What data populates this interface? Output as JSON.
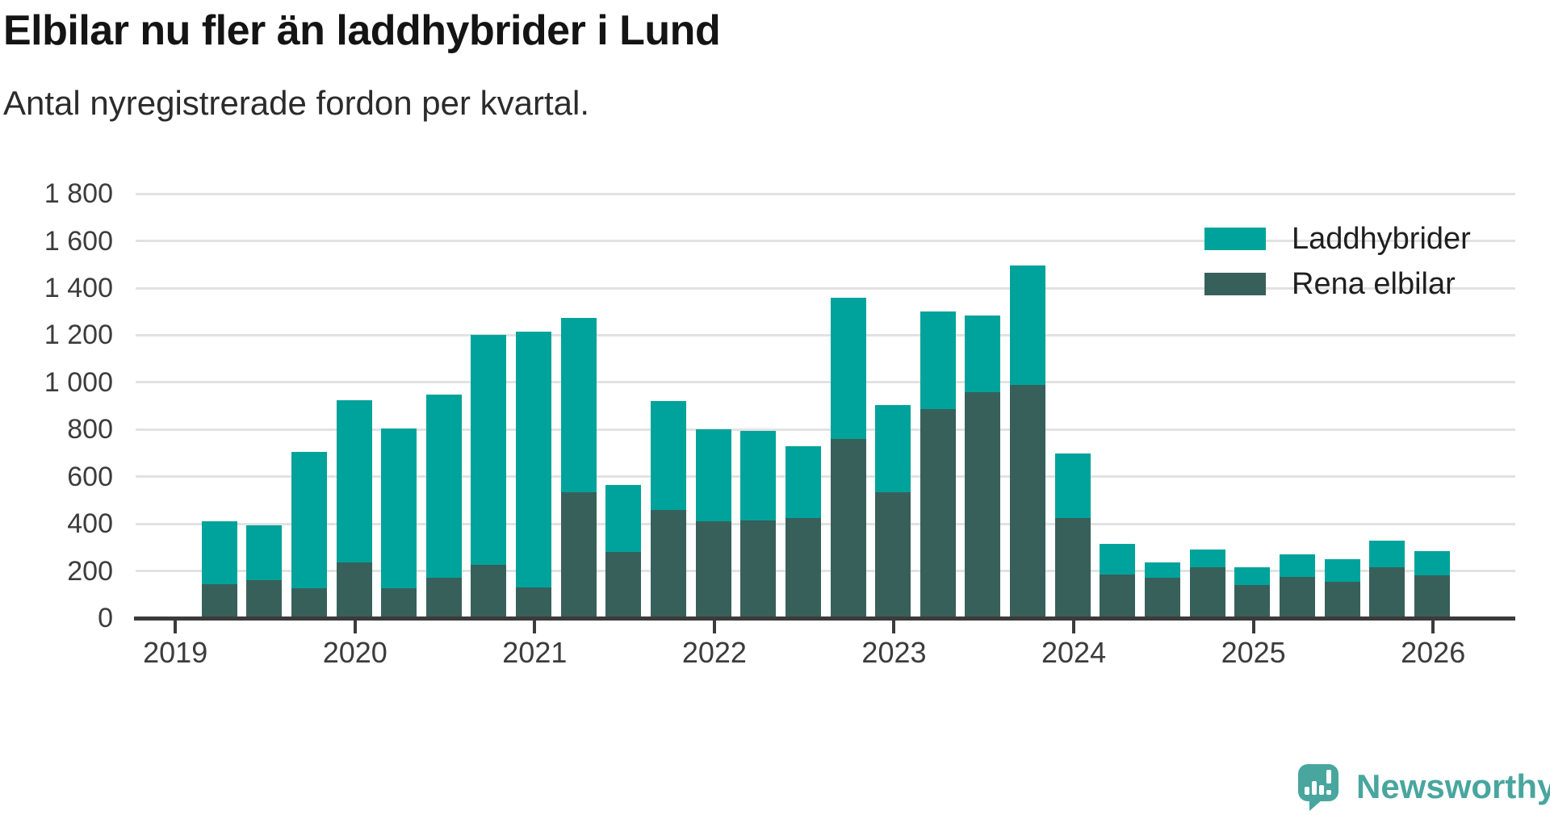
{
  "title": "Elbilar nu fler än laddhybrider i Lund",
  "subtitle": "Antal nyregistrerade fordon per kvartal.",
  "legend": {
    "items": [
      {
        "label": "Laddhybrider",
        "color": "#00a39b"
      },
      {
        "label": "Rena elbilar",
        "color": "#38605a"
      }
    ]
  },
  "branding": {
    "name": "Newsworthy",
    "color": "#48a69f"
  },
  "colors": {
    "laddhybrider": "#00a39b",
    "rena_elbilar": "#38605a",
    "axis": "#3b3b3b",
    "grid": "#e2e2e2",
    "text": "#3c3c3c"
  },
  "chart_data": {
    "type": "bar",
    "stacked": true,
    "title": "Elbilar nu fler än laddhybrider i Lund",
    "subtitle": "Antal nyregistrerade fordon per kvartal.",
    "xlabel": "",
    "ylabel": "",
    "ylim": [
      0,
      1800
    ],
    "grid": true,
    "legend_position": "top-right",
    "x": [
      "2019-Q2",
      "2019-Q3",
      "2019-Q4",
      "2020-Q1",
      "2020-Q2",
      "2020-Q3",
      "2020-Q4",
      "2021-Q1",
      "2021-Q2",
      "2021-Q3",
      "2021-Q4",
      "2022-Q1",
      "2022-Q2",
      "2022-Q3",
      "2022-Q4",
      "2023-Q1",
      "2023-Q2",
      "2023-Q3",
      "2023-Q4",
      "2024-Q1",
      "2024-Q2",
      "2024-Q3",
      "2024-Q4",
      "2025-Q1",
      "2025-Q2",
      "2025-Q3",
      "2025-Q4",
      "2026-Q1"
    ],
    "series": [
      {
        "name": "Rena elbilar",
        "color": "#38605a",
        "values": [
          145,
          160,
          125,
          235,
          125,
          170,
          225,
          130,
          535,
          280,
          460,
          410,
          415,
          425,
          760,
          535,
          885,
          960,
          990,
          425,
          185,
          170,
          215,
          140,
          175,
          155,
          215,
          180
        ]
      },
      {
        "name": "Laddhybrider",
        "color": "#00a39b",
        "values": [
          265,
          235,
          580,
          690,
          680,
          780,
          975,
          1085,
          740,
          285,
          460,
          390,
          380,
          305,
          600,
          370,
          415,
          325,
          505,
          275,
          130,
          65,
          75,
          75,
          95,
          95,
          115,
          105
        ]
      }
    ],
    "totals": [
      410,
      395,
      705,
      925,
      805,
      950,
      1200,
      1215,
      1275,
      565,
      920,
      800,
      795,
      730,
      1360,
      905,
      1300,
      1285,
      1495,
      700,
      315,
      235,
      290,
      215,
      270,
      250,
      330,
      285
    ],
    "ytick_values": [
      0,
      200,
      400,
      600,
      800,
      1000,
      1200,
      1400,
      1600,
      1800
    ],
    "ytick_labels": [
      "0",
      "200",
      "400",
      "600",
      "800",
      "1 000",
      "1 200",
      "1 400",
      "1 600",
      "1 800"
    ],
    "xtick_labels": [
      "2019",
      "2020",
      "2021",
      "2022",
      "2023",
      "2024",
      "2025",
      "2026"
    ]
  }
}
